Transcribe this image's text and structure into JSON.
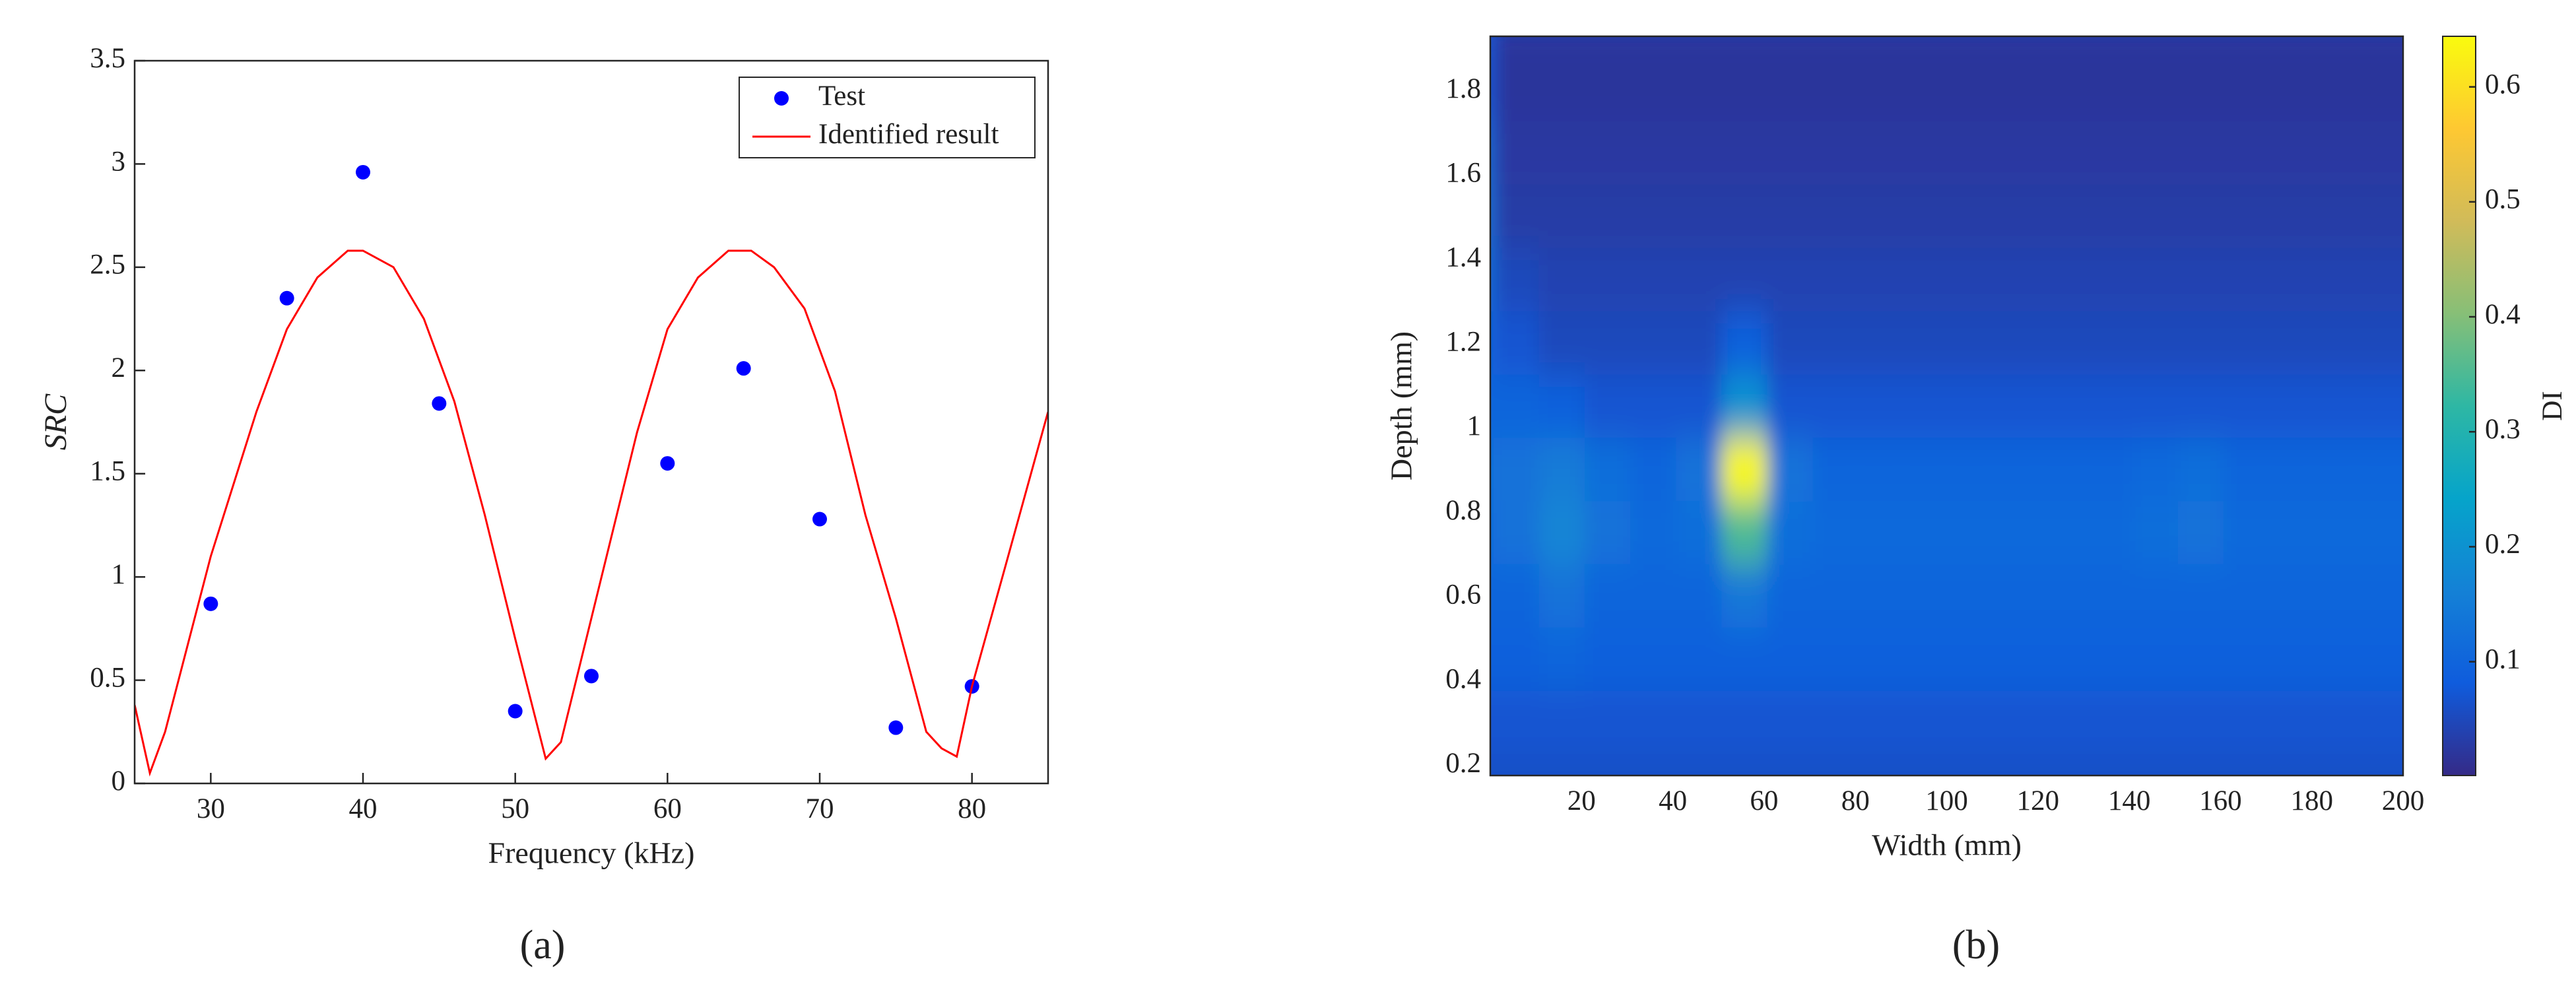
{
  "chart_data": [
    {
      "type": "scatter_line",
      "caption": "(a)",
      "xlabel": "Frequency (kHz)",
      "ylabel": "SRC",
      "xlim": [
        25,
        85
      ],
      "ylim": [
        0,
        3.5
      ],
      "xticks": [
        30,
        40,
        50,
        60,
        70,
        80
      ],
      "yticks": [
        0,
        0.5,
        1,
        1.5,
        2,
        2.5,
        3,
        3.5
      ],
      "legend": "upper right",
      "series": [
        {
          "name": "Test",
          "kind": "scatter",
          "color": "#0000ff",
          "x": [
            30,
            35,
            40,
            45,
            50,
            55,
            60,
            65,
            70,
            75,
            80
          ],
          "values": [
            0.87,
            2.35,
            2.96,
            1.84,
            0.35,
            0.52,
            1.55,
            2.01,
            1.28,
            0.27,
            0.47
          ]
        },
        {
          "name": "Identified result",
          "kind": "line",
          "color": "#ff0000",
          "x": [
            25,
            26,
            27,
            30,
            33,
            35,
            37,
            39,
            40,
            42,
            44,
            46,
            48,
            50,
            52,
            53,
            55,
            58,
            60,
            62,
            64,
            65.5,
            67,
            69,
            71,
            73,
            75,
            77,
            78,
            79,
            80,
            82,
            85
          ],
          "values": [
            0.38,
            0.05,
            0.25,
            1.1,
            1.8,
            2.2,
            2.45,
            2.58,
            2.58,
            2.5,
            2.25,
            1.85,
            1.3,
            0.7,
            0.12,
            0.2,
            0.8,
            1.7,
            2.2,
            2.45,
            2.58,
            2.58,
            2.5,
            2.3,
            1.9,
            1.3,
            0.8,
            0.25,
            0.17,
            0.13,
            0.47,
            1.0,
            1.8
          ]
        }
      ]
    },
    {
      "type": "heatmap",
      "caption": "(b)",
      "xlabel": "Width (mm)",
      "ylabel": "Depth (mm)",
      "colorbar_label": "DI",
      "colormap": "parula",
      "xlim": [
        0,
        200
      ],
      "ylim": [
        0.177,
        1.93
      ],
      "xticks": [
        20,
        40,
        60,
        80,
        100,
        120,
        140,
        160,
        180,
        200
      ],
      "yticks": [
        0.2,
        0.4,
        0.6,
        0.8,
        1,
        1.2,
        1.4,
        1.6,
        1.8
      ],
      "clim": [
        0.001,
        0.644
      ],
      "cticks": [
        0.1,
        0.2,
        0.3,
        0.4,
        0.5,
        0.6
      ],
      "x": [
        0,
        10,
        20,
        30,
        40,
        50,
        60,
        70,
        80,
        90,
        100,
        110,
        120,
        130,
        140,
        150,
        160,
        170,
        180,
        190,
        200
      ],
      "y": [
        0.2,
        0.35,
        0.5,
        0.65,
        0.8,
        0.95,
        1.1,
        1.25,
        1.4,
        1.55,
        1.7,
        1.85
      ],
      "z": [
        [
          0.06,
          0.06,
          0.06,
          0.06,
          0.06,
          0.06,
          0.06,
          0.06,
          0.06,
          0.06,
          0.06,
          0.06,
          0.06,
          0.06,
          0.06,
          0.06,
          0.06,
          0.06,
          0.06,
          0.06,
          0.06
        ],
        [
          0.07,
          0.07,
          0.07,
          0.07,
          0.07,
          0.07,
          0.07,
          0.07,
          0.07,
          0.07,
          0.07,
          0.07,
          0.07,
          0.07,
          0.07,
          0.07,
          0.07,
          0.07,
          0.07,
          0.07,
          0.07
        ],
        [
          0.09,
          0.09,
          0.1,
          0.09,
          0.09,
          0.09,
          0.09,
          0.09,
          0.09,
          0.09,
          0.09,
          0.09,
          0.09,
          0.09,
          0.09,
          0.09,
          0.09,
          0.09,
          0.09,
          0.09,
          0.09
        ],
        [
          0.1,
          0.1,
          0.13,
          0.1,
          0.1,
          0.1,
          0.14,
          0.1,
          0.1,
          0.1,
          0.1,
          0.1,
          0.1,
          0.1,
          0.1,
          0.1,
          0.1,
          0.1,
          0.1,
          0.1,
          0.1
        ],
        [
          0.11,
          0.13,
          0.17,
          0.13,
          0.11,
          0.12,
          0.35,
          0.12,
          0.11,
          0.11,
          0.11,
          0.11,
          0.11,
          0.11,
          0.11,
          0.12,
          0.13,
          0.11,
          0.11,
          0.11,
          0.11
        ],
        [
          0.12,
          0.13,
          0.15,
          0.12,
          0.1,
          0.13,
          0.64,
          0.13,
          0.1,
          0.1,
          0.1,
          0.1,
          0.1,
          0.1,
          0.1,
          0.11,
          0.12,
          0.1,
          0.1,
          0.1,
          0.1
        ],
        [
          0.1,
          0.1,
          0.09,
          0.07,
          0.07,
          0.07,
          0.2,
          0.07,
          0.07,
          0.07,
          0.07,
          0.07,
          0.07,
          0.07,
          0.07,
          0.07,
          0.07,
          0.07,
          0.07,
          0.07,
          0.07
        ],
        [
          0.1,
          0.07,
          0.05,
          0.05,
          0.05,
          0.05,
          0.09,
          0.05,
          0.05,
          0.05,
          0.05,
          0.05,
          0.05,
          0.05,
          0.05,
          0.05,
          0.05,
          0.05,
          0.05,
          0.05,
          0.05
        ],
        [
          0.12,
          0.05,
          0.04,
          0.04,
          0.04,
          0.04,
          0.04,
          0.04,
          0.04,
          0.04,
          0.04,
          0.04,
          0.04,
          0.04,
          0.04,
          0.04,
          0.04,
          0.04,
          0.04,
          0.04,
          0.04
        ],
        [
          0.13,
          0.03,
          0.03,
          0.03,
          0.03,
          0.03,
          0.03,
          0.03,
          0.03,
          0.03,
          0.03,
          0.03,
          0.03,
          0.03,
          0.03,
          0.03,
          0.03,
          0.03,
          0.03,
          0.03,
          0.03
        ],
        [
          0.12,
          0.025,
          0.025,
          0.025,
          0.025,
          0.025,
          0.025,
          0.025,
          0.025,
          0.025,
          0.025,
          0.025,
          0.025,
          0.025,
          0.025,
          0.025,
          0.025,
          0.025,
          0.025,
          0.025,
          0.025
        ],
        [
          0.08,
          0.02,
          0.02,
          0.02,
          0.02,
          0.02,
          0.02,
          0.02,
          0.02,
          0.02,
          0.02,
          0.02,
          0.02,
          0.02,
          0.02,
          0.02,
          0.02,
          0.02,
          0.02,
          0.02,
          0.02
        ]
      ]
    }
  ]
}
